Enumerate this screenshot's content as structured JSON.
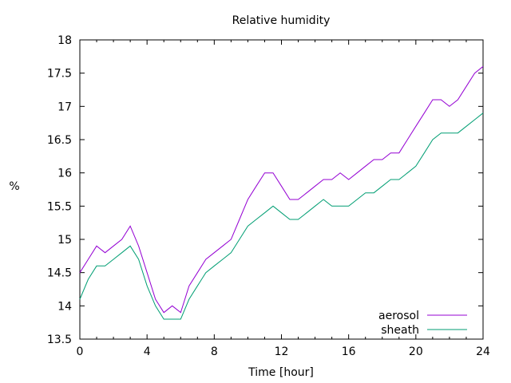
{
  "chart_data": {
    "type": "line",
    "title": "Relative humidity",
    "xlabel": "Time [hour]",
    "ylabel": "%",
    "xlim": [
      0,
      24
    ],
    "ylim": [
      13.5,
      18
    ],
    "xticks": [
      0,
      4,
      8,
      12,
      16,
      20,
      24
    ],
    "yticks": [
      13.5,
      14,
      14.5,
      15,
      15.5,
      16,
      16.5,
      17,
      17.5,
      18
    ],
    "grid": false,
    "legend_position": "bottom-right",
    "series": [
      {
        "name": "aerosol",
        "color": "#9400d3",
        "x": [
          0,
          0.5,
          1,
          1.5,
          2,
          2.5,
          3,
          3.5,
          4,
          4.5,
          5,
          5.5,
          6,
          6.5,
          7,
          7.5,
          8,
          8.5,
          9,
          9.5,
          10,
          10.5,
          11,
          11.5,
          12,
          12.5,
          13,
          13.5,
          14,
          14.5,
          15,
          15.5,
          16,
          16.5,
          17,
          17.5,
          18,
          18.5,
          19,
          19.5,
          20,
          20.5,
          21,
          21.5,
          22,
          22.5,
          23,
          23.5,
          24
        ],
        "y": [
          14.5,
          14.7,
          14.9,
          14.8,
          14.9,
          15.0,
          15.2,
          14.9,
          14.5,
          14.1,
          13.9,
          14.0,
          13.9,
          14.3,
          14.5,
          14.7,
          14.8,
          14.9,
          15.0,
          15.3,
          15.6,
          15.8,
          16.0,
          16.0,
          15.8,
          15.6,
          15.6,
          15.7,
          15.8,
          15.9,
          15.9,
          16.0,
          15.9,
          16.0,
          16.1,
          16.2,
          16.2,
          16.3,
          16.3,
          16.5,
          16.7,
          16.9,
          17.1,
          17.1,
          17.0,
          17.1,
          17.3,
          17.5,
          17.6
        ]
      },
      {
        "name": "sheath",
        "color": "#009e73",
        "x": [
          0,
          0.5,
          1,
          1.5,
          2,
          2.5,
          3,
          3.5,
          4,
          4.5,
          5,
          5.5,
          6,
          6.5,
          7,
          7.5,
          8,
          8.5,
          9,
          9.5,
          10,
          10.5,
          11,
          11.5,
          12,
          12.5,
          13,
          13.5,
          14,
          14.5,
          15,
          15.5,
          16,
          16.5,
          17,
          17.5,
          18,
          18.5,
          19,
          19.5,
          20,
          20.5,
          21,
          21.5,
          22,
          22.5,
          23,
          23.5,
          24
        ],
        "y": [
          14.1,
          14.4,
          14.6,
          14.6,
          14.7,
          14.8,
          14.9,
          14.7,
          14.3,
          14.0,
          13.8,
          13.8,
          13.8,
          14.1,
          14.3,
          14.5,
          14.6,
          14.7,
          14.8,
          15.0,
          15.2,
          15.3,
          15.4,
          15.5,
          15.4,
          15.3,
          15.3,
          15.4,
          15.5,
          15.6,
          15.5,
          15.5,
          15.5,
          15.6,
          15.7,
          15.7,
          15.8,
          15.9,
          15.9,
          16.0,
          16.1,
          16.3,
          16.5,
          16.6,
          16.6,
          16.6,
          16.7,
          16.8,
          16.9
        ]
      }
    ]
  }
}
